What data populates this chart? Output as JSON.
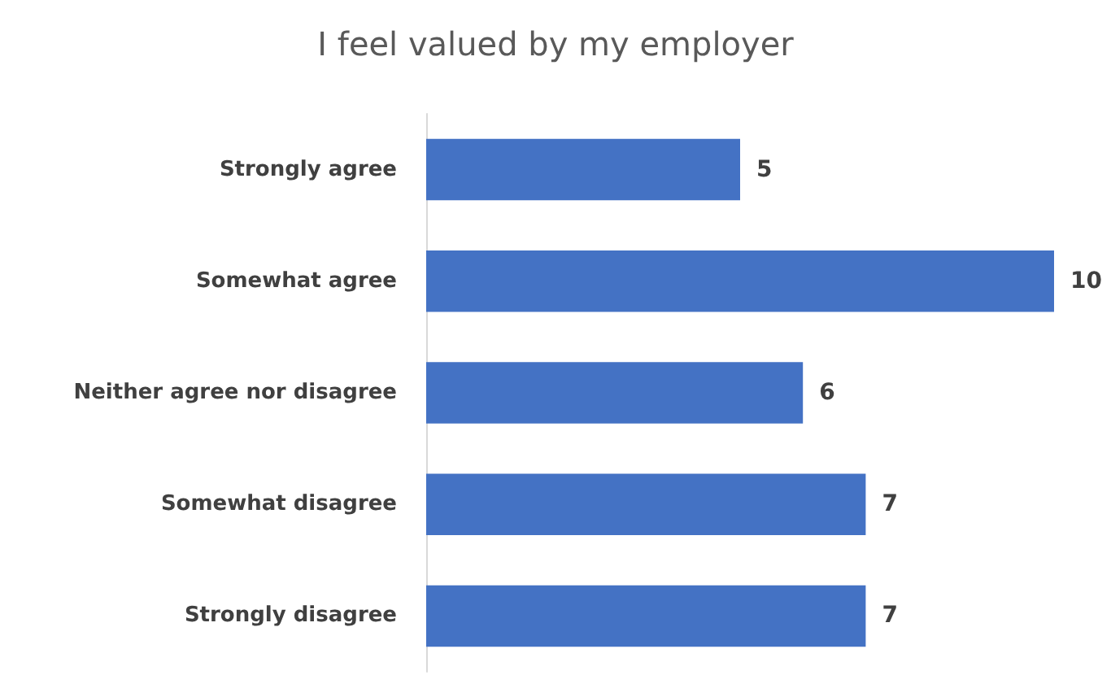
{
  "chart_data": {
    "type": "bar",
    "title": "I feel valued by my employer",
    "orientation": "horizontal",
    "categories": [
      "Strongly agree",
      "Somewhat agree",
      "Neither agree nor disagree",
      "Somewhat disagree",
      "Strongly disagree"
    ],
    "values": [
      5,
      10,
      6,
      7,
      7
    ],
    "color": "#4472c4",
    "data_labels": true
  }
}
